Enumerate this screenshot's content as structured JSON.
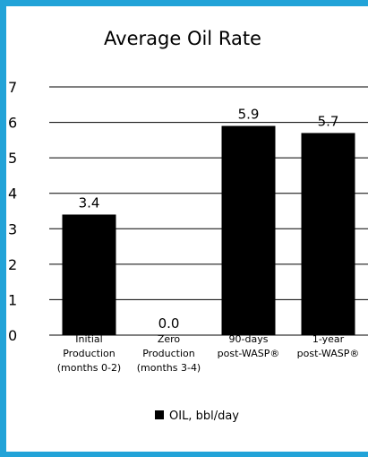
{
  "chart_data": {
    "type": "bar",
    "title": "Average Oil Rate",
    "categories": [
      [
        "Initial",
        "Production",
        "(months 0-2)"
      ],
      [
        "Zero",
        "Production",
        "(months 3-4)"
      ],
      [
        "90-days",
        "post-WASP®"
      ],
      [
        "1-year",
        "post-WASP®"
      ]
    ],
    "series": [
      {
        "name": "OIL, bbl/day",
        "values": [
          3.4,
          0.0,
          5.9,
          5.7
        ]
      }
    ],
    "value_labels": [
      "3.4",
      "0.0",
      "5.9",
      "5.7"
    ],
    "yticks": [
      "0",
      "1",
      "2",
      "3",
      "4",
      "5",
      "6",
      "7"
    ],
    "ylim": [
      0,
      7
    ],
    "grid": true,
    "legend_position": "bottom-center",
    "bar_color": "#000000",
    "frame_color": "#22a3d8"
  }
}
